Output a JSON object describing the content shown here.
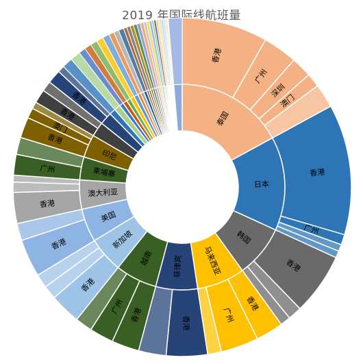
{
  "chart_data": {
    "type": "sunburst",
    "title": "2019 年国际线航班量",
    "start_angle_deg": 0,
    "inner_ring": [
      {
        "name": "泰国",
        "value": 52,
        "color": "#F4B183"
      },
      {
        "name": "日本",
        "value": 45,
        "color": "#2E75B6"
      },
      {
        "name": "韩国",
        "value": 25,
        "color": "#6A6A6A"
      },
      {
        "name": "马来西亚",
        "value": 23,
        "color": "#FFC000"
      },
      {
        "name": "菲律宾",
        "value": 20,
        "color": "#264478"
      },
      {
        "name": "越南",
        "value": 20,
        "color": "#3A5F25"
      },
      {
        "name": "新加坡",
        "value": 17,
        "color": "#9DC3E6"
      },
      {
        "name": "美国",
        "value": 16,
        "color": "#8EB4E3"
      },
      {
        "name": "澳大利亚",
        "value": 14,
        "color": "#A5A5A5"
      },
      {
        "name": "柬埔寨",
        "value": 11,
        "color": "#3A5F25"
      },
      {
        "name": "印尼",
        "value": 11,
        "color": "#7F6000"
      },
      {
        "name": "",
        "value": 7,
        "color": "#404040"
      },
      {
        "name": "",
        "value": 6,
        "color": "#264478"
      },
      {
        "name": "",
        "value": 3,
        "color": "#2E75B6"
      },
      {
        "name": "",
        "value": 3,
        "color": "#A9D18E"
      },
      {
        "name": "",
        "value": 2,
        "color": "#4472C4"
      },
      {
        "name": "",
        "value": 2,
        "color": "#C55A11"
      },
      {
        "name": "",
        "value": 2,
        "color": "#70AD47"
      },
      {
        "name": "",
        "value": 2,
        "color": "#FFC000"
      },
      {
        "name": "",
        "value": 2,
        "color": "#5B9BD5"
      },
      {
        "name": "",
        "value": 1.5,
        "color": "#ED7D31"
      },
      {
        "name": "",
        "value": 1.5,
        "color": "#A5A5A5"
      },
      {
        "name": "",
        "value": 1.5,
        "color": "#255E91"
      },
      {
        "name": "",
        "value": 1,
        "color": "#9E480E"
      },
      {
        "name": "",
        "value": 1,
        "color": "#636363"
      },
      {
        "name": "",
        "value": 1,
        "color": "#997300"
      },
      {
        "name": "",
        "value": 1,
        "color": "#43682B"
      },
      {
        "name": "",
        "value": 1,
        "color": "#698ED0"
      },
      {
        "name": "",
        "value": 1,
        "color": "#F1975A"
      },
      {
        "name": "",
        "value": 0.8,
        "color": "#B7B7B7"
      },
      {
        "name": "",
        "value": 0.8,
        "color": "#FFCD33"
      },
      {
        "name": "",
        "value": 0.8,
        "color": "#7CAFDD"
      },
      {
        "name": "",
        "value": 0.6,
        "color": "#8CC168"
      },
      {
        "name": "",
        "value": 0.6,
        "color": "#264478"
      },
      {
        "name": "",
        "value": 0.6,
        "color": "#F4B183"
      },
      {
        "name": "",
        "value": 0.5,
        "color": "#FFD966"
      },
      {
        "name": "",
        "value": 0.5,
        "color": "#C9C9C9"
      },
      {
        "name": "",
        "value": 0.5,
        "color": "#9DC3E6"
      },
      {
        "name": "",
        "value": 0.4,
        "color": "#A9D18E"
      },
      {
        "name": "",
        "value": 0.4,
        "color": "#BDD7EE"
      },
      {
        "name": "",
        "value": 0.4,
        "color": "#F8CBAD"
      },
      {
        "name": "",
        "value": 0.3,
        "color": "#D9D9D9"
      },
      {
        "name": "",
        "value": 4,
        "color": "#8EA9DB"
      }
    ],
    "outer_ring": [
      {
        "parent": 0,
        "name": "香港",
        "value": 25
      },
      {
        "parent": 0,
        "name": "广州",
        "value": 10
      },
      {
        "parent": 0,
        "name": "深圳",
        "value": 6
      },
      {
        "parent": 0,
        "name": "澳门",
        "value": 4
      },
      {
        "parent": 0,
        "name": "",
        "value": 7
      },
      {
        "parent": 1,
        "name": "香港",
        "value": 38
      },
      {
        "parent": 1,
        "name": "广州",
        "value": 3
      },
      {
        "parent": 1,
        "name": "",
        "value": 2
      },
      {
        "parent": 1,
        "name": "",
        "value": 2
      },
      {
        "parent": 2,
        "name": "香港",
        "value": 18
      },
      {
        "parent": 2,
        "name": "",
        "value": 4
      },
      {
        "parent": 2,
        "name": "",
        "value": 3
      },
      {
        "parent": 3,
        "name": "香港",
        "value": 8
      },
      {
        "parent": 3,
        "name": "广州",
        "value": 11
      },
      {
        "parent": 3,
        "name": "",
        "value": 4
      },
      {
        "parent": 4,
        "name": "香港",
        "value": 12
      },
      {
        "parent": 4,
        "name": "",
        "value": 8
      },
      {
        "parent": 5,
        "name": "香港",
        "value": 8
      },
      {
        "parent": 5,
        "name": "广州",
        "value": 7
      },
      {
        "parent": 5,
        "name": "",
        "value": 5
      },
      {
        "parent": 6,
        "name": "香港",
        "value": 9
      },
      {
        "parent": 6,
        "name": "",
        "value": 4
      },
      {
        "parent": 6,
        "name": "",
        "value": 4
      },
      {
        "parent": 7,
        "name": "香港",
        "value": 11
      },
      {
        "parent": 7,
        "name": "",
        "value": 5
      },
      {
        "parent": 8,
        "name": "香港",
        "value": 9
      },
      {
        "parent": 8,
        "name": "",
        "value": 3
      },
      {
        "parent": 8,
        "name": "",
        "value": 2
      },
      {
        "parent": 9,
        "name": "广州",
        "value": 6
      },
      {
        "parent": 9,
        "name": "",
        "value": 5
      },
      {
        "parent": 10,
        "name": "香港",
        "value": 6
      },
      {
        "parent": 10,
        "name": "澳门",
        "value": 3
      },
      {
        "parent": 10,
        "name": "",
        "value": 2
      },
      {
        "parent": 11,
        "name": "香港",
        "value": 4
      },
      {
        "parent": 11,
        "name": "",
        "value": 3
      },
      {
        "parent": 12,
        "name": "香港",
        "value": 4
      },
      {
        "parent": 12,
        "name": "",
        "value": 2
      }
    ]
  }
}
